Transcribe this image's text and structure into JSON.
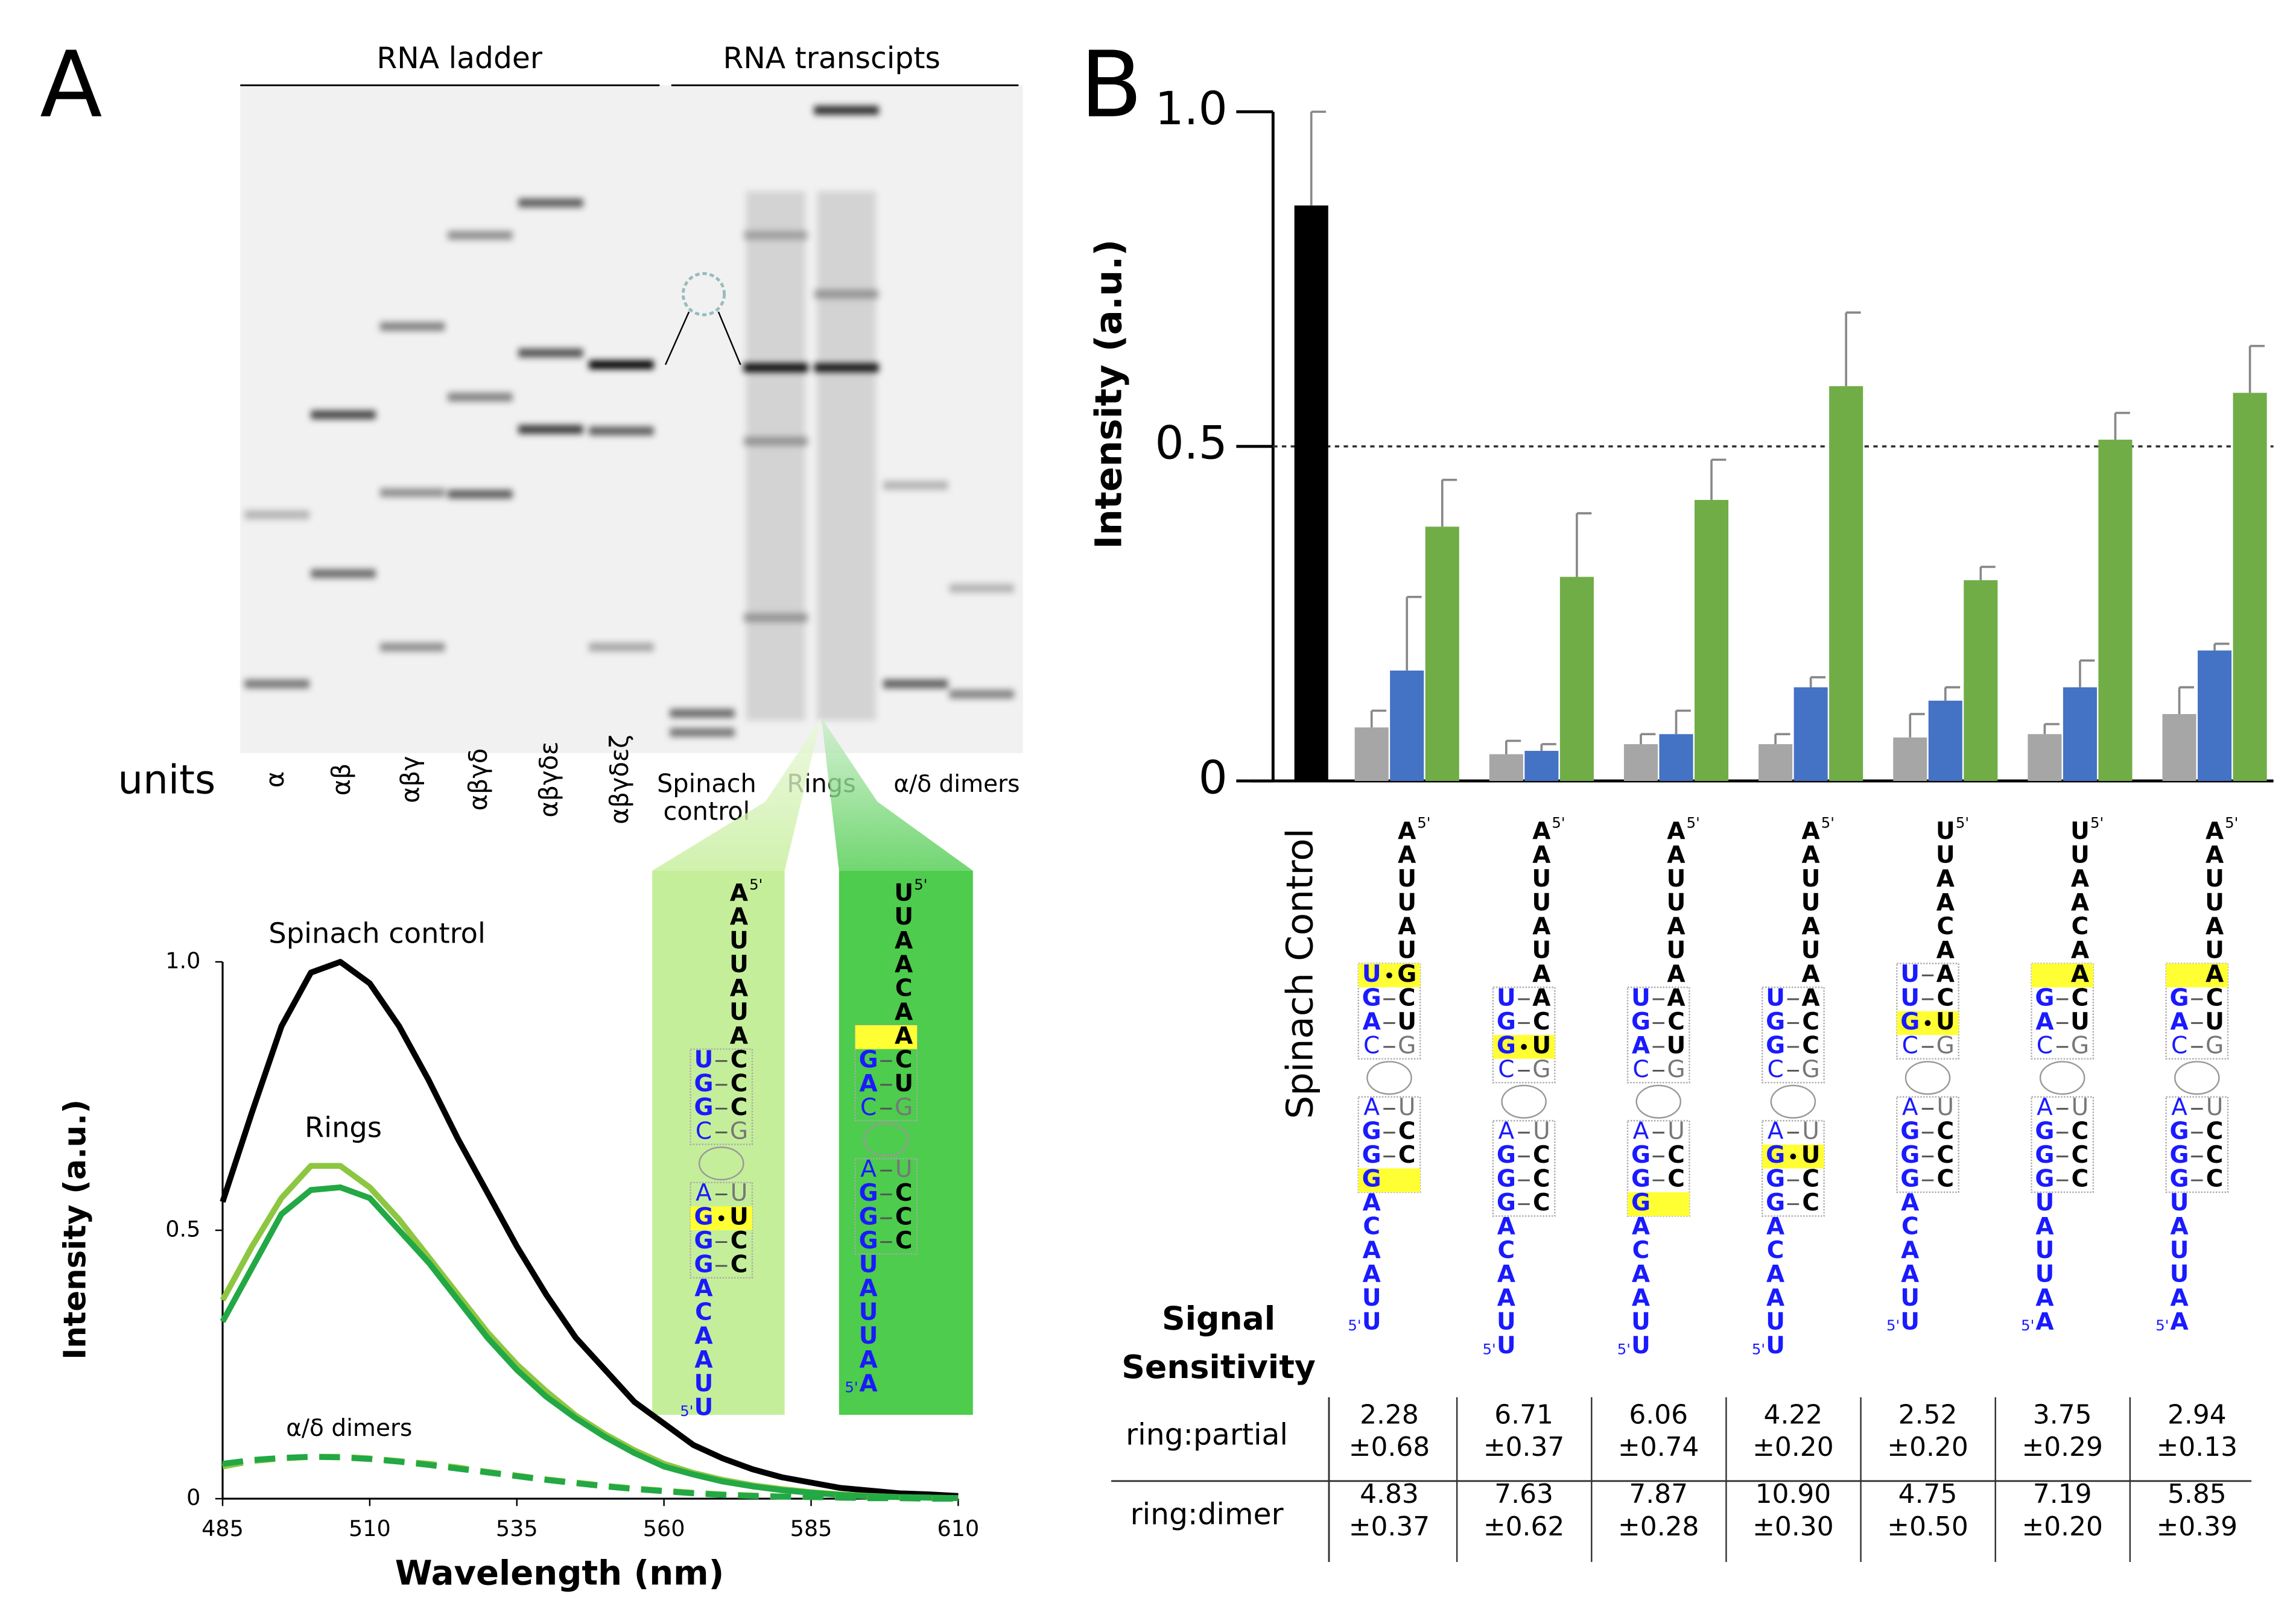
{
  "panel_labels": [
    "A",
    "B"
  ],
  "gel": {
    "header_left": "RNA ladder",
    "header_right": "RNA transcipts",
    "units_label": "units",
    "ladder_lanes": [
      "α",
      "αβ",
      "αβγ",
      "αβγδ",
      "αβγδε",
      "αβγδεζ"
    ],
    "spinach_lane": [
      "Spinach",
      "control"
    ],
    "rings_lane": "Rings",
    "dimers_lane": "α/δ dimers"
  },
  "chart_data": [
    {
      "type": "bar",
      "ylabel": "Intensity (a.u.)",
      "categories": [
        "Spinach Control",
        null,
        null,
        null,
        null,
        null,
        null,
        null
      ],
      "ylim": [
        0,
        1
      ],
      "yticks": [
        0,
        0.5,
        {
          "value": 1,
          "label": "1.0"
        }
      ],
      "reference_line": 0.5,
      "series": [
        {
          "color": "#000000",
          "values": [
            0.86,
            null,
            null,
            null,
            null,
            null,
            null,
            null
          ],
          "errors": [
            0.14,
            null,
            null,
            null,
            null,
            null,
            null,
            null
          ]
        },
        {
          "color": "#a6a6a6",
          "values": [
            null,
            0.08,
            0.04,
            0.055,
            0.055,
            0.065,
            0.07,
            0.1
          ],
          "errors": [
            null,
            0.025,
            0.02,
            0.015,
            0.015,
            0.035,
            0.015,
            0.04
          ]
        },
        {
          "color": "#4472c4",
          "values": [
            null,
            0.165,
            0.045,
            0.07,
            0.14,
            0.12,
            0.14,
            0.195
          ],
          "errors": [
            null,
            0.11,
            0.01,
            0.035,
            0.015,
            0.02,
            0.04,
            0.01
          ]
        },
        {
          "color": "#70ad47",
          "values": [
            null,
            0.38,
            0.305,
            0.42,
            0.59,
            0.3,
            0.51,
            0.58
          ],
          "errors": [
            null,
            0.07,
            0.095,
            0.06,
            0.11,
            0.02,
            0.04,
            0.07
          ]
        }
      ]
    },
    {
      "type": "line",
      "xlabel": "Wavelength (nm)",
      "ylabel": "Intensity (a.u.)",
      "annotations": [
        "Spinach control",
        "Rings",
        "α/δ dimers"
      ],
      "x": [
        485,
        490,
        495,
        500,
        505,
        510,
        515,
        520,
        525,
        530,
        535,
        540,
        545,
        550,
        555,
        560,
        565,
        570,
        575,
        580,
        585,
        590,
        595,
        600,
        605,
        610
      ],
      "xlim": [
        485,
        610
      ],
      "xticks": [
        485,
        510,
        535,
        560,
        585,
        610
      ],
      "ylim": [
        0,
        1
      ],
      "yticks": [
        0,
        0.5,
        {
          "value": 1,
          "label": "1.0"
        }
      ],
      "series": [
        {
          "color": "#000000",
          "dash": "solid",
          "values": [
            0.553,
            0.72,
            0.88,
            0.98,
            1.0,
            0.96,
            0.88,
            0.78,
            0.67,
            0.57,
            0.47,
            0.38,
            0.3,
            0.24,
            0.18,
            0.14,
            0.1,
            0.075,
            0.055,
            0.04,
            0.03,
            0.02,
            0.015,
            0.01,
            0.008,
            0.005
          ]
        },
        {
          "color": "#8dc641",
          "dash": "solid",
          "values": [
            0.37,
            0.47,
            0.56,
            0.62,
            0.62,
            0.58,
            0.52,
            0.45,
            0.38,
            0.31,
            0.25,
            0.2,
            0.155,
            0.12,
            0.09,
            0.065,
            0.048,
            0.035,
            0.025,
            0.018,
            0.012,
            0.008,
            0.005,
            0.003,
            0.002,
            0.001
          ]
        },
        {
          "color": "#22a844",
          "dash": "solid",
          "values": [
            0.33,
            0.43,
            0.53,
            0.575,
            0.58,
            0.56,
            0.5,
            0.44,
            0.37,
            0.3,
            0.24,
            0.19,
            0.15,
            0.115,
            0.085,
            0.06,
            0.045,
            0.032,
            0.023,
            0.016,
            0.011,
            0.007,
            0.004,
            0.003,
            0.002,
            0.001
          ]
        },
        {
          "color": "#8dc641",
          "dash": "dashed",
          "values": [
            0.06,
            0.07,
            0.075,
            0.078,
            0.078,
            0.075,
            0.07,
            0.065,
            0.058,
            0.05,
            0.043,
            0.036,
            0.03,
            0.024,
            0.019,
            0.015,
            0.011,
            0.008,
            0.006,
            0.004,
            0.003,
            0.002,
            0.001,
            0.001,
            0,
            0
          ]
        },
        {
          "color": "#22a844",
          "dash": "dashed",
          "values": [
            0.065,
            0.072,
            0.076,
            0.078,
            0.077,
            0.074,
            0.069,
            0.063,
            0.056,
            0.049,
            0.042,
            0.035,
            0.029,
            0.023,
            0.018,
            0.014,
            0.01,
            0.007,
            0.005,
            0.004,
            0.003,
            0.002,
            0.001,
            0.001,
            0,
            0
          ]
        }
      ]
    }
  ],
  "structures": {
    "prime_label": "5'",
    "panel_a": [
      {
        "top": [
          "A",
          "A",
          "U",
          "U",
          "A",
          "U",
          "A"
        ],
        "stem1": [
          {
            "l": "U",
            "r": "C"
          },
          {
            "l": "G",
            "r": "C"
          },
          {
            "l": "G",
            "r": "C"
          },
          {
            "l": "C",
            "r": "G"
          }
        ],
        "stem2": [
          {
            "l": "A",
            "r": "U"
          },
          {
            "l": "G",
            "r": "U",
            "highlight": true
          },
          {
            "l": "G",
            "r": "C"
          },
          {
            "l": "G",
            "r": "C"
          }
        ],
        "tail": [
          "A",
          "C",
          "A",
          "A",
          "U",
          "U"
        ]
      },
      {
        "top": [
          "U",
          "U",
          "A",
          "A",
          "C",
          "A"
        ],
        "stem1": [
          {
            "r": "A",
            "highlight": true
          },
          {
            "l": "G",
            "r": "C"
          },
          {
            "l": "A",
            "r": "U"
          },
          {
            "l": "C",
            "r": "G"
          }
        ],
        "stem2": [
          {
            "l": "A",
            "r": "U"
          },
          {
            "l": "G",
            "r": "C"
          },
          {
            "l": "G",
            "r": "C"
          },
          {
            "l": "G",
            "r": "C"
          }
        ],
        "tail": [
          "U",
          "A",
          "U",
          "U",
          "A",
          "A"
        ]
      }
    ],
    "panel_b": [
      {
        "top": [
          "A",
          "A",
          "U",
          "U",
          "A",
          "U"
        ],
        "stem1": [
          {
            "l": "U",
            "r": "G",
            "highlight": true
          },
          {
            "l": "G",
            "r": "C"
          },
          {
            "l": "A",
            "r": "U"
          },
          {
            "l": "C",
            "r": "G"
          }
        ],
        "stem2": [
          {
            "l": "A",
            "r": "U"
          },
          {
            "l": "G",
            "r": "C"
          },
          {
            "l": "G",
            "r": "C"
          },
          {
            "l": "G",
            "highlight": true
          }
        ],
        "tail": [
          "A",
          "C",
          "A",
          "A",
          "U",
          "U"
        ]
      },
      {
        "top": [
          "A",
          "A",
          "U",
          "U",
          "A",
          "U",
          "A"
        ],
        "stem1": [
          {
            "l": "U",
            "r": "A"
          },
          {
            "l": "G",
            "r": "C"
          },
          {
            "l": "G",
            "r": "U",
            "highlight": true
          },
          {
            "l": "C",
            "r": "G"
          }
        ],
        "stem2": [
          {
            "l": "A",
            "r": "U"
          },
          {
            "l": "G",
            "r": "C"
          },
          {
            "l": "G",
            "r": "C"
          },
          {
            "l": "G",
            "r": "C"
          }
        ],
        "tail": [
          "A",
          "C",
          "A",
          "A",
          "U",
          "U"
        ]
      },
      {
        "top": [
          "A",
          "A",
          "U",
          "U",
          "A",
          "U",
          "A"
        ],
        "stem1": [
          {
            "l": "U",
            "r": "A"
          },
          {
            "l": "G",
            "r": "C"
          },
          {
            "l": "A",
            "r": "U"
          },
          {
            "l": "C",
            "r": "G"
          }
        ],
        "stem2": [
          {
            "l": "A",
            "r": "U"
          },
          {
            "l": "G",
            "r": "C"
          },
          {
            "l": "G",
            "r": "C"
          },
          {
            "l": "G",
            "highlight": true
          }
        ],
        "tail": [
          "A",
          "C",
          "A",
          "A",
          "U",
          "U"
        ]
      },
      {
        "top": [
          "A",
          "A",
          "U",
          "U",
          "A",
          "U",
          "A"
        ],
        "stem1": [
          {
            "l": "U",
            "r": "A"
          },
          {
            "l": "G",
            "r": "C"
          },
          {
            "l": "G",
            "r": "C"
          },
          {
            "l": "C",
            "r": "G"
          }
        ],
        "stem2": [
          {
            "l": "A",
            "r": "U"
          },
          {
            "l": "G",
            "r": "U",
            "highlight": true
          },
          {
            "l": "G",
            "r": "C"
          },
          {
            "l": "G",
            "r": "C"
          }
        ],
        "tail": [
          "A",
          "C",
          "A",
          "A",
          "U",
          "U"
        ]
      },
      {
        "top": [
          "U",
          "U",
          "A",
          "A",
          "C",
          "A"
        ],
        "stem1": [
          {
            "l": "U",
            "r": "A"
          },
          {
            "l": "U",
            "r": "C"
          },
          {
            "l": "G",
            "r": "U",
            "highlight": true
          },
          {
            "l": "C",
            "r": "G"
          }
        ],
        "stem2": [
          {
            "l": "A",
            "r": "U"
          },
          {
            "l": "G",
            "r": "C"
          },
          {
            "l": "G",
            "r": "C"
          },
          {
            "l": "G",
            "r": "C"
          }
        ],
        "tail": [
          "A",
          "C",
          "A",
          "A",
          "U",
          "U"
        ]
      },
      {
        "top": [
          "U",
          "U",
          "A",
          "A",
          "C",
          "A"
        ],
        "stem1": [
          {
            "r": "A",
            "highlight": true
          },
          {
            "l": "G",
            "r": "C"
          },
          {
            "l": "A",
            "r": "U"
          },
          {
            "l": "C",
            "r": "G"
          }
        ],
        "stem2": [
          {
            "l": "A",
            "r": "U"
          },
          {
            "l": "G",
            "r": "C"
          },
          {
            "l": "G",
            "r": "C"
          },
          {
            "l": "G",
            "r": "C"
          }
        ],
        "tail": [
          "U",
          "A",
          "U",
          "U",
          "A",
          "A"
        ]
      },
      {
        "top": [
          "A",
          "A",
          "U",
          "U",
          "A",
          "U"
        ],
        "stem1": [
          {
            "r": "A",
            "highlight": true
          },
          {
            "l": "G",
            "r": "C"
          },
          {
            "l": "A",
            "r": "U"
          },
          {
            "l": "C",
            "r": "G"
          }
        ],
        "stem2": [
          {
            "l": "A",
            "r": "U"
          },
          {
            "l": "G",
            "r": "C"
          },
          {
            "l": "G",
            "r": "C"
          },
          {
            "l": "G",
            "r": "C"
          }
        ],
        "tail": [
          "U",
          "A",
          "U",
          "U",
          "A",
          "A"
        ]
      }
    ]
  },
  "table": {
    "header": [
      "Signal",
      "Sensitivity"
    ],
    "rows": [
      {
        "label": "ring:partial",
        "cells": [
          [
            "2.28",
            "±0.68"
          ],
          [
            "6.71",
            "±0.37"
          ],
          [
            "6.06",
            "±0.74"
          ],
          [
            "4.22",
            "±0.20"
          ],
          [
            "2.52",
            "±0.20"
          ],
          [
            "3.75",
            "±0.29"
          ],
          [
            "2.94",
            "±0.13"
          ]
        ]
      },
      {
        "label": "ring:dimer",
        "cells": [
          [
            "4.83",
            "±0.37"
          ],
          [
            "7.63",
            "±0.62"
          ],
          [
            "7.87",
            "±0.28"
          ],
          [
            "10.90",
            "±0.30"
          ],
          [
            "4.75",
            "±0.50"
          ],
          [
            "7.19",
            "±0.20"
          ],
          [
            "5.85",
            "±0.39"
          ]
        ]
      }
    ]
  }
}
